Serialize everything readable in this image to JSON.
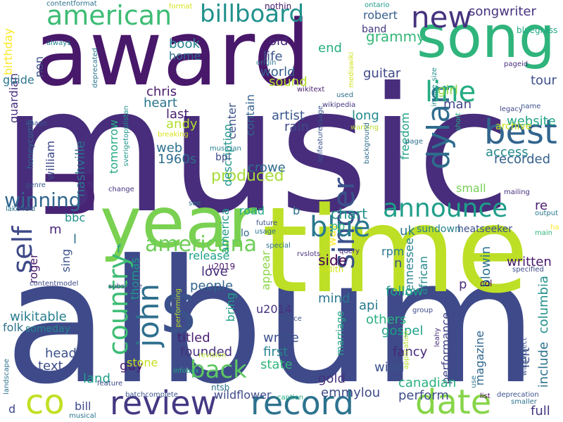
{
  "words": [
    {
      "text": "music",
      "color": "#472d7b"
    },
    {
      "text": "album",
      "color": "#3e4a89"
    },
    {
      "text": "award",
      "color": "#48186a"
    },
    {
      "text": "time",
      "color": "#bddf26"
    },
    {
      "text": "year",
      "color": "#7ad151"
    },
    {
      "text": "song",
      "color": "#2fb47c"
    },
    {
      "text": "u",
      "color": "#482475"
    },
    {
      "text": "s",
      "color": "#3b518b"
    },
    {
      "text": "co",
      "color": "#c2df23"
    },
    {
      "text": "review",
      "color": "#443983"
    },
    {
      "text": "record",
      "color": "#2c728e"
    },
    {
      "text": "date",
      "color": "#86d549"
    },
    {
      "text": "best",
      "color": "#32658e"
    },
    {
      "text": "new",
      "color": "#46337f"
    },
    {
      "text": "american",
      "color": "#3dbc74"
    },
    {
      "text": "billboard",
      "color": "#21918c"
    },
    {
      "text": "announce",
      "color": "#1f9e89"
    },
    {
      "text": "dylan",
      "color": "#2f6c8e"
    },
    {
      "text": "line",
      "color": "#25ac82"
    },
    {
      "text": "country",
      "color": "#3dbc74"
    },
    {
      "text": "john",
      "color": "#2e6f8e"
    },
    {
      "text": "singer",
      "color": "#3b528b"
    },
    {
      "text": "self",
      "color": "#3e4989"
    },
    {
      "text": "blue",
      "color": "#2a788e"
    },
    {
      "text": "back",
      "color": "#5cc863"
    },
    {
      "text": "americana",
      "color": "#6ece58"
    },
    {
      "text": "winning",
      "color": "#31668e"
    },
    {
      "text": "produced",
      "color": "#a5db36"
    },
    {
      "text": "songwriter",
      "color": "#46327e"
    },
    {
      "text": "grammy",
      "color": "#35b779"
    },
    {
      "text": "robert",
      "color": "#355f8d"
    },
    {
      "text": "band",
      "color": "#453781"
    },
    {
      "text": "end",
      "color": "#26ad81"
    },
    {
      "text": "old",
      "color": "#482677"
    },
    {
      "text": "life",
      "color": "#39558c"
    },
    {
      "text": "world",
      "color": "#355e8d"
    },
    {
      "text": "sound",
      "color": "#b5de2b"
    },
    {
      "text": "guitar",
      "color": "#3f4788"
    },
    {
      "text": "tour",
      "color": "#3d4e8a"
    },
    {
      "text": "man",
      "color": "#404688"
    },
    {
      "text": "girl",
      "color": "#8ed645"
    },
    {
      "text": "website",
      "color": "#20a386"
    },
    {
      "text": "freedom",
      "color": "#1fa088"
    },
    {
      "text": "archive",
      "color": "#cde11d"
    },
    {
      "text": "recorded",
      "color": "#34608d"
    },
    {
      "text": "access",
      "color": "#23898e"
    },
    {
      "text": "artist",
      "color": "#39568c"
    },
    {
      "text": "rain",
      "color": "#3e4989"
    },
    {
      "text": "long",
      "color": "#238a8d"
    },
    {
      "text": "heart",
      "color": "#2c738e"
    },
    {
      "text": "last",
      "color": "#482173"
    },
    {
      "text": "andy",
      "color": "#b2dd2d"
    },
    {
      "text": "chris",
      "color": "#481b6d"
    },
    {
      "text": "web",
      "color": "#2c728e"
    },
    {
      "text": "1960s",
      "color": "#2e6e8e"
    },
    {
      "text": "crowe",
      "color": "#2f6c8e"
    },
    {
      "text": "center",
      "color": "#3b528b"
    },
    {
      "text": "contain",
      "color": "#33638d"
    },
    {
      "text": "description",
      "color": "#1f968b"
    },
    {
      "text": "home",
      "color": "#2f6b8e"
    },
    {
      "text": "book",
      "color": "#25848e"
    },
    {
      "text": "guardian",
      "color": "#46307e"
    },
    {
      "text": "non",
      "color": "#3a538b"
    },
    {
      "text": "guide",
      "color": "#2b758e"
    },
    {
      "text": "birthday",
      "color": "#fde725"
    },
    {
      "text": "nashville",
      "color": "#2d708e"
    },
    {
      "text": "william",
      "color": "#3e4989"
    },
    {
      "text": "tomorrow",
      "color": "#22a884"
    },
    {
      "text": "honeycomb",
      "color": "#31688e"
    },
    {
      "text": "small",
      "color": "#75d054"
    },
    {
      "text": "chart",
      "color": "#21918c"
    },
    {
      "text": "road",
      "color": "#22a785"
    },
    {
      "text": "america",
      "color": "#1e9b8a"
    },
    {
      "text": "uk",
      "color": "#2a788e"
    },
    {
      "text": "tennessee",
      "color": "#26828e"
    },
    {
      "text": "way",
      "color": "#fde725"
    },
    {
      "text": "side",
      "color": "#440154"
    },
    {
      "text": "release",
      "color": "#1fa187"
    },
    {
      "text": "thomas",
      "color": "#1f9a8a"
    },
    {
      "text": "love",
      "color": "#472c7a"
    },
    {
      "text": "people",
      "color": "#32648e"
    },
    {
      "text": "appear",
      "color": "#8bd646"
    },
    {
      "text": "african",
      "color": "#24878e"
    },
    {
      "text": "blowin",
      "color": "#2c718e"
    },
    {
      "text": "written",
      "color": "#48186a"
    },
    {
      "text": "sundown",
      "color": "#27808e"
    },
    {
      "text": "heatseeker",
      "color": "#3c4f8a"
    },
    {
      "text": "mind",
      "color": "#2a778e"
    },
    {
      "text": "follow",
      "color": "#1fa088"
    },
    {
      "text": "others",
      "color": "#29af7f"
    },
    {
      "text": "gospel",
      "color": "#1fa088"
    },
    {
      "text": "api",
      "color": "#29798e"
    },
    {
      "text": "marriage",
      "color": "#21a685"
    },
    {
      "text": "fancy",
      "color": "#472a7a"
    },
    {
      "text": "wind",
      "color": "#3b528b"
    },
    {
      "text": "state",
      "color": "#31b57b"
    },
    {
      "text": "first",
      "color": "#26828e"
    },
    {
      "text": "wrote",
      "color": "#3c508b"
    },
    {
      "text": "founded",
      "color": "#46317e"
    },
    {
      "text": "titled",
      "color": "#481f70"
    },
    {
      "text": "head",
      "color": "#3b528b"
    },
    {
      "text": "text",
      "color": "#3e4c8a"
    },
    {
      "text": "guy",
      "color": "#481d6f"
    },
    {
      "text": "stone",
      "color": "#c8e020"
    },
    {
      "text": "land",
      "color": "#1f9e89"
    },
    {
      "text": "bill",
      "color": "#3e4989"
    },
    {
      "text": "folk",
      "color": "#2d718e"
    },
    {
      "text": "someday",
      "color": "#24868e"
    },
    {
      "text": "wikitable",
      "color": "#277f8e"
    },
    {
      "text": "magazine",
      "color": "#31678e"
    },
    {
      "text": "performance",
      "color": "#414487"
    },
    {
      "text": "left",
      "color": "#3b528b"
    },
    {
      "text": "include",
      "color": "#2c728e"
    },
    {
      "text": "columbia",
      "color": "#21918c"
    },
    {
      "text": "gold",
      "color": "#46317e"
    },
    {
      "text": "canadian",
      "color": "#2ab07f"
    },
    {
      "text": "perform",
      "color": "#3d4e8a"
    },
    {
      "text": "emmylou",
      "color": "#3e4a89"
    },
    {
      "text": "full",
      "color": "#453781"
    },
    {
      "text": "wildflower",
      "color": "#3e4a89"
    },
    {
      "text": "bbc",
      "color": "#21918c"
    },
    {
      "text": "roger",
      "color": "#481467"
    },
    {
      "text": "sing",
      "color": "#3b528b"
    },
    {
      "text": "pp",
      "color": "#31b57b"
    },
    {
      "text": "rpm",
      "color": "#2a788e"
    },
    {
      "text": "re",
      "color": "#481f70"
    },
    {
      "text": "bring",
      "color": "#1fa088"
    },
    {
      "text": "u2014",
      "color": "#46317e"
    },
    {
      "text": "u2019",
      "color": "#48186a"
    },
    {
      "text": "judith",
      "color": "#d2e21b"
    },
    {
      "text": "n",
      "color": "#3b528b"
    },
    {
      "text": "p",
      "color": "#472d7b"
    },
    {
      "text": "col",
      "color": "#440154"
    },
    {
      "text": "m",
      "color": "#482878"
    },
    {
      "text": "l",
      "color": "#2e6e8e"
    },
    {
      "text": "f",
      "color": "#1f9e89"
    },
    {
      "text": "b",
      "color": "#2c728e"
    },
    {
      "text": "d",
      "color": "#3e4989"
    },
    {
      "text": "lo",
      "color": "#31678e"
    },
    {
      "text": "ntsb",
      "color": "#2c728e"
    },
    {
      "text": "bpi",
      "color": "#3e4a89"
    },
    {
      "text": "nothin",
      "color": "#481769"
    },
    {
      "text": "contentformat",
      "color": "#2c728e"
    },
    {
      "text": "format",
      "color": "#d5e21a"
    },
    {
      "text": "ontario",
      "color": "#1e9c89"
    },
    {
      "text": "bluegrass",
      "color": "#22a884"
    },
    {
      "text": "pageid",
      "color": "#46307e"
    },
    {
      "text": "always",
      "color": "#26828e"
    },
    {
      "text": "deprecated",
      "color": "#2a768e"
    },
    {
      "text": "origin",
      "color": "#2a778e"
    },
    {
      "text": "mediawiki",
      "color": "#d2e21b"
    },
    {
      "text": "wikitext",
      "color": "#481c6e"
    },
    {
      "text": "used",
      "color": "#2d708e"
    },
    {
      "text": "wikipedia",
      "color": "#453581"
    },
    {
      "text": "image_size",
      "color": "#228c8d"
    },
    {
      "text": "legacy",
      "color": "#3f4788"
    },
    {
      "text": "name",
      "color": "#3b528b"
    },
    {
      "text": "short",
      "color": "#26ad81"
    },
    {
      "text": "image",
      "color": "#3b528b"
    },
    {
      "text": "breaking",
      "color": "#d8e219"
    },
    {
      "text": "sverigetopplistan",
      "color": "#1f948c"
    },
    {
      "text": "musician",
      "color": "#26828e"
    },
    {
      "text": "apifeatureusage",
      "color": "#39568c"
    },
    {
      "text": "warning",
      "color": "#b8de29"
    },
    {
      "text": "background",
      "color": "#2f6c8e"
    },
    {
      "text": "page",
      "color": "#2d718e"
    },
    {
      "text": "genre",
      "color": "#39558c"
    },
    {
      "text": "change",
      "color": "#46337f"
    },
    {
      "text": "lakefield",
      "color": "#2b748e"
    },
    {
      "text": "see",
      "color": "#2c728e"
    },
    {
      "text": "future",
      "color": "#3b528b"
    },
    {
      "text": "usage",
      "color": "#2c728e"
    },
    {
      "text": "special",
      "color": "#2c728e"
    },
    {
      "text": "rvslots",
      "color": "#46327e"
    },
    {
      "text": "query",
      "color": "#482878"
    },
    {
      "text": "mailing",
      "color": "#46307e"
    },
    {
      "text": "output",
      "color": "#2a778e"
    },
    {
      "text": "main",
      "color": "#31b57b"
    },
    {
      "text": "ha",
      "color": "#fde725"
    },
    {
      "text": "specified",
      "color": "#3e4989"
    },
    {
      "text": "contentmodel",
      "color": "#3e4989"
    },
    {
      "text": "subscribe",
      "color": "#3e4989"
    },
    {
      "text": "performing",
      "color": "#bddf26"
    },
    {
      "text": "notice",
      "color": "#3b528b"
    },
    {
      "text": "group",
      "color": "#3e4989"
    },
    {
      "text": "application",
      "color": "#b5de2b"
    },
    {
      "text": "revision",
      "color": "#b5de2b"
    },
    {
      "text": "caption",
      "color": "#25ab82"
    },
    {
      "text": "leahy",
      "color": "#472d7b"
    },
    {
      "text": "wikiproject",
      "color": "#3b528b"
    },
    {
      "text": "use",
      "color": "#2c728e"
    },
    {
      "text": "list",
      "color": "#440154"
    },
    {
      "text": "deprecation",
      "color": "#3b528b"
    },
    {
      "text": "smaller",
      "color": "#2c728e"
    },
    {
      "text": "landscape",
      "color": "#2c728e"
    },
    {
      "text": "infobox",
      "color": "#22a884"
    },
    {
      "text": "feature",
      "color": "#3e4989"
    },
    {
      "text": "batchcomplete",
      "color": "#3b528b"
    },
    {
      "text": "musical",
      "color": "#2c728e"
    }
  ]
}
